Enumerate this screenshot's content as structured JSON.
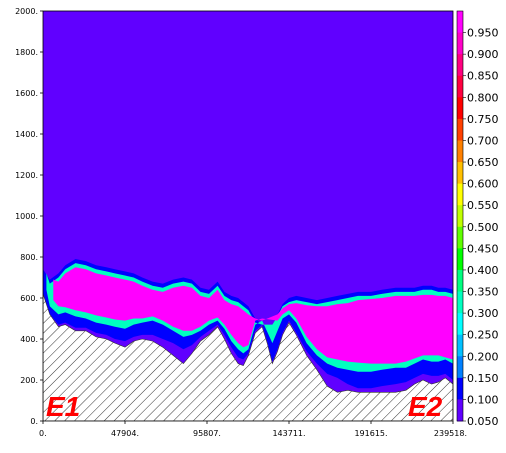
{
  "chart_data": {
    "type": "heatmap",
    "title": "",
    "xlabel": "",
    "ylabel": "",
    "xlim": [
      0,
      239518
    ],
    "ylim": [
      0,
      2000
    ],
    "x_ticks": [
      0,
      47904,
      95807,
      143711,
      191615,
      239518
    ],
    "x_tick_labels": [
      "0.",
      "47904.",
      "95807.",
      "143711.",
      "191615.",
      "239518."
    ],
    "y_ticks": [
      0,
      200,
      400,
      600,
      800,
      1000,
      1200,
      1400,
      1600,
      1800,
      2000
    ],
    "y_tick_labels": [
      "0.",
      "200.",
      "400.",
      "600.",
      "800.",
      "1000.",
      "1200.",
      "1400.",
      "1600.",
      "1800.",
      "2000."
    ],
    "background_value": 0.05,
    "field_color": "#6000ff",
    "hatch_color": "#333333",
    "colorbar": {
      "labels": [
        "0.950",
        "0.900",
        "0.850",
        "0.800",
        "0.750",
        "0.700",
        "0.650",
        "0.600",
        "0.550",
        "0.500",
        "0.450",
        "0.400",
        "0.350",
        "0.300",
        "0.250",
        "0.200",
        "0.150",
        "0.100",
        "0.050"
      ],
      "colors": [
        "#ff00ff",
        "#ff00c8",
        "#ff0080",
        "#ff0040",
        "#ff0000",
        "#ff4000",
        "#ff8000",
        "#ffc000",
        "#ffff00",
        "#c0ff00",
        "#60ff00",
        "#00ff00",
        "#00ff80",
        "#00ffc0",
        "#00ffff",
        "#00c0ff",
        "#0080ff",
        "#0000ff",
        "#6000ff"
      ]
    },
    "terrain": {
      "x": [
        0,
        4000,
        9000,
        13000,
        19000,
        25000,
        31000,
        37000,
        42000,
        47904,
        53000,
        58000,
        64000,
        70000,
        76000,
        82000,
        87000,
        92000,
        97000,
        102000,
        106000,
        110000,
        114000,
        117000,
        120000,
        124000,
        128000,
        131000,
        134000,
        137000,
        140000,
        143711,
        148000,
        154000,
        160000,
        166000,
        172000,
        178000,
        184000,
        191615,
        198000,
        206000,
        212000,
        217000,
        222000,
        227000,
        231000,
        235000,
        239518
      ],
      "y": [
        620,
        520,
        460,
        470,
        440,
        440,
        410,
        400,
        380,
        360,
        390,
        400,
        390,
        360,
        320,
        280,
        330,
        390,
        420,
        460,
        400,
        330,
        280,
        270,
        320,
        430,
        460,
        380,
        280,
        340,
        420,
        480,
        420,
        320,
        250,
        170,
        140,
        150,
        140,
        140,
        140,
        140,
        150,
        180,
        200,
        180,
        190,
        210,
        180
      ]
    },
    "layers": [
      {
        "value": 0.1,
        "x": [
          0,
          4000,
          9000,
          13000,
          19000,
          25000,
          31000,
          37000,
          42000,
          47904,
          53000,
          58000,
          64000,
          70000,
          76000,
          82000,
          87000,
          92000,
          97000,
          102000,
          106000,
          110000,
          114000,
          117000,
          120000,
          124000,
          128000,
          131000,
          134000,
          137000,
          140000,
          143711,
          148000,
          154000,
          160000,
          166000,
          172000,
          178000,
          184000,
          191615,
          198000,
          206000,
          212000,
          217000,
          222000,
          227000,
          231000,
          235000,
          239518
        ],
        "bottom": [
          620,
          520,
          470,
          480,
          455,
          455,
          430,
          420,
          400,
          390,
          410,
          420,
          420,
          400,
          380,
          350,
          370,
          410,
          440,
          470,
          420,
          360,
          310,
          300,
          330,
          440,
          470,
          390,
          290,
          350,
          430,
          490,
          430,
          340,
          280,
          230,
          210,
          180,
          160,
          160,
          170,
          180,
          190,
          210,
          230,
          220,
          220,
          230,
          200
        ],
        "top": [
          740,
          690,
          720,
          760,
          790,
          780,
          760,
          750,
          740,
          730,
          720,
          700,
          680,
          670,
          690,
          700,
          690,
          650,
          640,
          680,
          630,
          610,
          600,
          580,
          560,
          500,
          470,
          460,
          460,
          520,
          570,
          600,
          610,
          600,
          590,
          600,
          610,
          620,
          630,
          630,
          640,
          650,
          650,
          650,
          660,
          660,
          650,
          650,
          640
        ]
      },
      {
        "value": 0.3,
        "x": [
          2000,
          4000,
          9000,
          13000,
          19000,
          25000,
          31000,
          37000,
          42000,
          47904,
          53000,
          58000,
          64000,
          70000,
          76000,
          82000,
          87000,
          92000,
          97000,
          102000,
          106000,
          110000,
          114000,
          117000,
          120000,
          124000,
          128000,
          134000,
          137000,
          140000,
          143711,
          148000,
          154000,
          160000,
          166000,
          172000,
          178000,
          184000,
          191615,
          198000,
          206000,
          212000,
          217000,
          222000,
          227000,
          231000,
          235000,
          239518
        ],
        "bottom": [
          640,
          560,
          520,
          530,
          510,
          500,
          480,
          470,
          460,
          450,
          470,
          480,
          490,
          470,
          440,
          410,
          420,
          440,
          470,
          490,
          450,
          390,
          350,
          330,
          350,
          470,
          490,
          380,
          440,
          500,
          520,
          480,
          380,
          320,
          280,
          260,
          250,
          240,
          240,
          250,
          260,
          260,
          280,
          300,
          290,
          290,
          300,
          280
        ],
        "top": [
          720,
          670,
          700,
          740,
          770,
          760,
          740,
          730,
          720,
          710,
          700,
          680,
          660,
          650,
          670,
          680,
          670,
          630,
          620,
          660,
          610,
          590,
          580,
          560,
          540,
          480,
          470,
          470,
          510,
          560,
          580,
          590,
          580,
          570,
          580,
          590,
          600,
          610,
          610,
          620,
          630,
          630,
          630,
          640,
          640,
          630,
          630,
          620
        ]
      },
      {
        "value": 0.95,
        "x": [
          6000,
          9000,
          13000,
          19000,
          25000,
          31000,
          37000,
          42000,
          47904,
          53000,
          58000,
          64000,
          70000,
          76000,
          82000,
          87000,
          92000,
          97000,
          102000,
          106000,
          110000,
          114000,
          117000,
          120000,
          124000,
          128000,
          137000,
          140000,
          143711,
          148000,
          154000,
          160000,
          166000,
          172000,
          178000,
          184000,
          191615,
          198000,
          206000,
          212000,
          217000,
          222000,
          227000,
          231000,
          235000,
          239518
        ],
        "bottom": [
          590,
          560,
          555,
          540,
          530,
          515,
          505,
          495,
          490,
          500,
          500,
          510,
          490,
          460,
          440,
          440,
          460,
          490,
          505,
          470,
          420,
          380,
          360,
          370,
          490,
          500,
          490,
          520,
          540,
          500,
          410,
          350,
          310,
          300,
          290,
          285,
          280,
          280,
          280,
          290,
          305,
          320,
          320,
          320,
          310,
          300
        ],
        "top": [
          690,
          680,
          720,
          750,
          740,
          720,
          710,
          700,
          690,
          680,
          660,
          640,
          630,
          650,
          660,
          650,
          610,
          600,
          640,
          590,
          570,
          560,
          540,
          520,
          500,
          490,
          520,
          550,
          570,
          575,
          565,
          560,
          560,
          570,
          575,
          590,
          595,
          600,
          610,
          610,
          610,
          615,
          615,
          610,
          610,
          600
        ]
      }
    ],
    "section_labels": [
      "E1",
      "E2"
    ],
    "section_label_color": "#ff0000"
  }
}
